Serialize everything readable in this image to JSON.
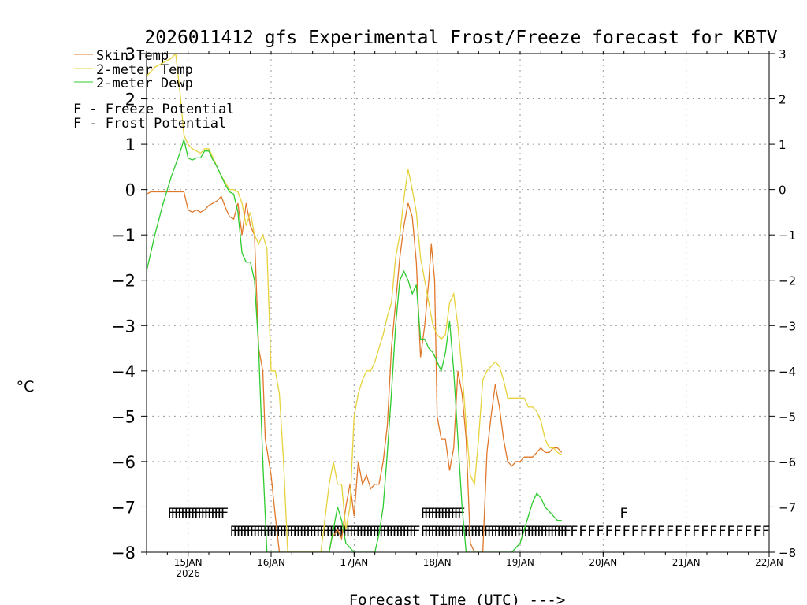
{
  "chart_data": {
    "type": "line",
    "title": "2026011412 gfs Experimental Frost/Freeze forecast for KBTV",
    "xlabel": "Forecast Time (UTC) --->",
    "ylabel": "°C",
    "ylim": [
      -8,
      3
    ],
    "xlim": [
      14.5,
      22.0
    ],
    "grid": true,
    "yticks": [
      -8,
      -7,
      -6,
      -5,
      -4,
      -3,
      -2,
      -1,
      0,
      1,
      2,
      3
    ],
    "ytick_labels": [
      "−8",
      "−7",
      "−6",
      "−5",
      "−4",
      "−3",
      "−2",
      "−1",
      "0",
      "1",
      "2",
      "3"
    ],
    "xticks": [
      {
        "day": 15,
        "label": "15JAN",
        "sublabel": "2026"
      },
      {
        "day": 16,
        "label": "16JAN"
      },
      {
        "day": 17,
        "label": "17JAN"
      },
      {
        "day": 18,
        "label": "18JAN"
      },
      {
        "day": 19,
        "label": "19JAN"
      },
      {
        "day": 20,
        "label": "20JAN"
      },
      {
        "day": 21,
        "label": "21JAN"
      },
      {
        "day": 22,
        "label": "22JAN"
      }
    ],
    "legend": {
      "placement": "top-left",
      "entries": [
        {
          "label": "Skin Temp",
          "color": "#e0782a"
        },
        {
          "label": "2-meter Temp",
          "color": "#e6d23c"
        },
        {
          "label": "2-meter Dewp",
          "color": "#2ecc2e"
        }
      ],
      "markers": [
        {
          "symbol": "F",
          "label": " - Freeze Potential",
          "color": "#cc3399"
        },
        {
          "symbol": "F",
          "label": " - Frost Potential",
          "color": "#3355cc"
        }
      ]
    },
    "series": [
      {
        "name": "Skin Temp",
        "color": "#e0782a",
        "x": [
          14.5,
          14.55,
          14.7,
          14.95,
          15.0,
          15.05,
          15.1,
          15.15,
          15.2,
          15.25,
          15.3,
          15.35,
          15.4,
          15.45,
          15.5,
          15.55,
          15.6,
          15.65,
          15.7,
          15.75,
          15.8,
          15.85,
          15.9,
          15.93,
          16.0,
          16.05,
          16.1,
          16.15,
          16.2,
          16.25,
          16.3,
          16.6,
          16.7,
          16.73,
          16.8,
          16.85,
          16.9,
          16.95,
          17.0,
          17.05,
          17.1,
          17.15,
          17.2,
          17.25,
          17.3,
          17.35,
          17.4,
          17.45,
          17.5,
          17.55,
          17.6,
          17.65,
          17.7,
          17.75,
          17.8,
          17.85,
          17.9,
          17.93,
          17.97,
          18.0,
          18.05,
          18.1,
          18.15,
          18.2,
          18.25,
          18.3,
          18.35,
          18.4,
          18.45,
          18.5,
          18.55,
          18.6,
          18.65,
          18.7,
          18.75,
          18.8,
          18.85,
          18.9,
          18.95,
          19.0,
          19.05,
          19.1,
          19.15,
          19.2,
          19.25,
          19.3,
          19.35,
          19.4,
          19.45,
          19.5
        ],
        "values": [
          -0.1,
          -0.05,
          -0.05,
          -0.05,
          -0.45,
          -0.5,
          -0.45,
          -0.5,
          -0.45,
          -0.35,
          -0.3,
          -0.25,
          -0.15,
          -0.4,
          -0.6,
          -0.65,
          -0.3,
          -1.0,
          -0.3,
          -0.8,
          -1.0,
          -3.5,
          -4.0,
          -5.5,
          -6.3,
          -7.2,
          -8.0,
          -8.0,
          -8.0,
          -8.0,
          -8.0,
          -8.0,
          -8.0,
          -7.7,
          -7.5,
          -7.7,
          -7.0,
          -6.5,
          -7.2,
          -6.0,
          -6.5,
          -6.3,
          -6.6,
          -6.5,
          -6.5,
          -6.0,
          -5.2,
          -3.5,
          -2.5,
          -1.5,
          -0.8,
          -0.3,
          -0.6,
          -1.6,
          -3.7,
          -3.0,
          -2.0,
          -1.2,
          -2.0,
          -5.0,
          -5.5,
          -5.5,
          -6.2,
          -5.7,
          -4.0,
          -4.5,
          -5.5,
          -7.8,
          -8.0,
          -8.0,
          -8.0,
          -5.8,
          -5.0,
          -4.3,
          -4.8,
          -5.5,
          -6.0,
          -6.1,
          -6.0,
          -6.0,
          -5.9,
          -5.9,
          -5.9,
          -5.8,
          -5.7,
          -5.8,
          -5.8,
          -5.7,
          -5.7,
          -5.8
        ]
      },
      {
        "name": "2-meter Temp",
        "color": "#e6d23c",
        "x": [
          14.5,
          14.6,
          14.7,
          14.8,
          14.85,
          14.9,
          14.95,
          15.0,
          15.05,
          15.1,
          15.15,
          15.2,
          15.25,
          15.3,
          15.35,
          15.4,
          15.45,
          15.5,
          15.55,
          15.6,
          15.65,
          15.7,
          15.75,
          15.8,
          15.85,
          15.9,
          15.95,
          16.0,
          16.05,
          16.1,
          16.15,
          16.2,
          16.6,
          16.7,
          16.75,
          16.8,
          16.85,
          16.9,
          16.95,
          17.0,
          17.05,
          17.1,
          17.15,
          17.2,
          17.25,
          17.3,
          17.35,
          17.4,
          17.45,
          17.5,
          17.55,
          17.6,
          17.65,
          17.7,
          17.75,
          17.8,
          17.85,
          17.9,
          17.95,
          18.0,
          18.05,
          18.1,
          18.15,
          18.2,
          18.25,
          18.3,
          18.35,
          18.4,
          18.45,
          18.5,
          18.55,
          18.6,
          18.65,
          18.7,
          18.75,
          18.8,
          18.85,
          18.9,
          18.95,
          19.0,
          19.05,
          19.1,
          19.15,
          19.2,
          19.25,
          19.3,
          19.35,
          19.4,
          19.45,
          19.5
        ],
        "values": [
          2.5,
          2.7,
          2.8,
          2.9,
          3.0,
          2.2,
          1.2,
          1.0,
          0.9,
          0.85,
          0.8,
          0.9,
          0.9,
          0.7,
          0.5,
          0.3,
          0.15,
          0.0,
          0.0,
          -0.05,
          -0.3,
          -0.8,
          -0.5,
          -1.0,
          -1.2,
          -1.0,
          -1.3,
          -4.0,
          -4.0,
          -4.5,
          -6.0,
          -8.0,
          -8.0,
          -6.5,
          -6.0,
          -6.5,
          -6.5,
          -7.5,
          -7.0,
          -5.0,
          -4.5,
          -4.2,
          -4.0,
          -4.0,
          -3.8,
          -3.5,
          -3.2,
          -2.8,
          -2.5,
          -1.5,
          -1.0,
          -0.2,
          0.45,
          0.0,
          -0.5,
          -1.5,
          -2.0,
          -2.5,
          -3.0,
          -3.2,
          -3.3,
          -3.2,
          -2.5,
          -2.3,
          -3.0,
          -4.0,
          -5.2,
          -6.3,
          -6.5,
          -5.5,
          -4.2,
          -4.0,
          -3.9,
          -3.8,
          -3.9,
          -4.2,
          -4.6,
          -4.6,
          -4.6,
          -4.6,
          -4.6,
          -4.8,
          -4.8,
          -4.9,
          -5.1,
          -5.5,
          -5.7,
          -5.7,
          -5.8,
          -5.85
        ]
      },
      {
        "name": "2-meter Dewp",
        "color": "#2ecc2e",
        "x": [
          14.5,
          14.6,
          14.7,
          14.8,
          14.9,
          14.95,
          15.0,
          15.05,
          15.1,
          15.15,
          15.2,
          15.25,
          15.3,
          15.35,
          15.4,
          15.45,
          15.5,
          15.55,
          15.6,
          15.65,
          15.7,
          15.75,
          15.8,
          15.85,
          15.9,
          15.95,
          16.0,
          16.05,
          16.1,
          16.6,
          16.7,
          16.75,
          16.8,
          16.85,
          16.9,
          16.95,
          17.0,
          17.1,
          17.2,
          17.25,
          17.3,
          17.35,
          17.4,
          17.45,
          17.5,
          17.55,
          17.6,
          17.65,
          17.7,
          17.75,
          17.8,
          17.85,
          17.9,
          17.95,
          18.0,
          18.05,
          18.1,
          18.15,
          18.2,
          18.25,
          18.3,
          18.35,
          18.4,
          18.45,
          18.5,
          18.55,
          18.6,
          18.9,
          19.0,
          19.1,
          19.15,
          19.2,
          19.25,
          19.3,
          19.35,
          19.4,
          19.45,
          19.5
        ],
        "values": [
          -1.8,
          -1.0,
          -0.3,
          0.3,
          0.8,
          1.1,
          0.7,
          0.65,
          0.7,
          0.7,
          0.85,
          0.85,
          0.65,
          0.5,
          0.3,
          0.1,
          -0.05,
          -0.1,
          -0.5,
          -1.4,
          -1.6,
          -1.6,
          -2.0,
          -3.5,
          -6.0,
          -8.0,
          -8.0,
          -8.0,
          -8.0,
          -8.0,
          -8.0,
          -7.5,
          -7.0,
          -7.3,
          -7.8,
          -7.9,
          -8.0,
          -8.0,
          -8.0,
          -8.0,
          -7.6,
          -7.0,
          -5.8,
          -4.5,
          -3.0,
          -2.0,
          -1.8,
          -2.0,
          -2.3,
          -2.1,
          -3.3,
          -3.3,
          -3.5,
          -3.6,
          -3.8,
          -4.0,
          -3.6,
          -2.9,
          -4.0,
          -5.5,
          -7.0,
          -8.0,
          -8.0,
          -8.0,
          -8.0,
          -8.0,
          -8.0,
          -8.0,
          -7.8,
          -7.2,
          -6.9,
          -6.7,
          -6.8,
          -7.0,
          -7.1,
          -7.2,
          -7.3,
          -7.3
        ]
      }
    ],
    "frost_markers": {
      "symbol": "F",
      "color": "#3355cc",
      "y": -7.1,
      "runs": [
        {
          "start": 14.75,
          "end": 15.4,
          "step": 0.04
        },
        {
          "start": 17.8,
          "end": 18.25,
          "step": 0.04
        },
        {
          "start": 20.2,
          "end": 20.2,
          "step": 0.1
        }
      ]
    },
    "freeze_markers": {
      "symbol": "F",
      "color": "#cc3399",
      "y": -7.5,
      "runs": [
        {
          "start": 15.5,
          "end": 17.72,
          "step": 0.04
        },
        {
          "start": 17.8,
          "end": 19.55,
          "step": 0.04
        },
        {
          "start": 19.6,
          "end": 22.0,
          "step": 0.105
        }
      ]
    }
  }
}
